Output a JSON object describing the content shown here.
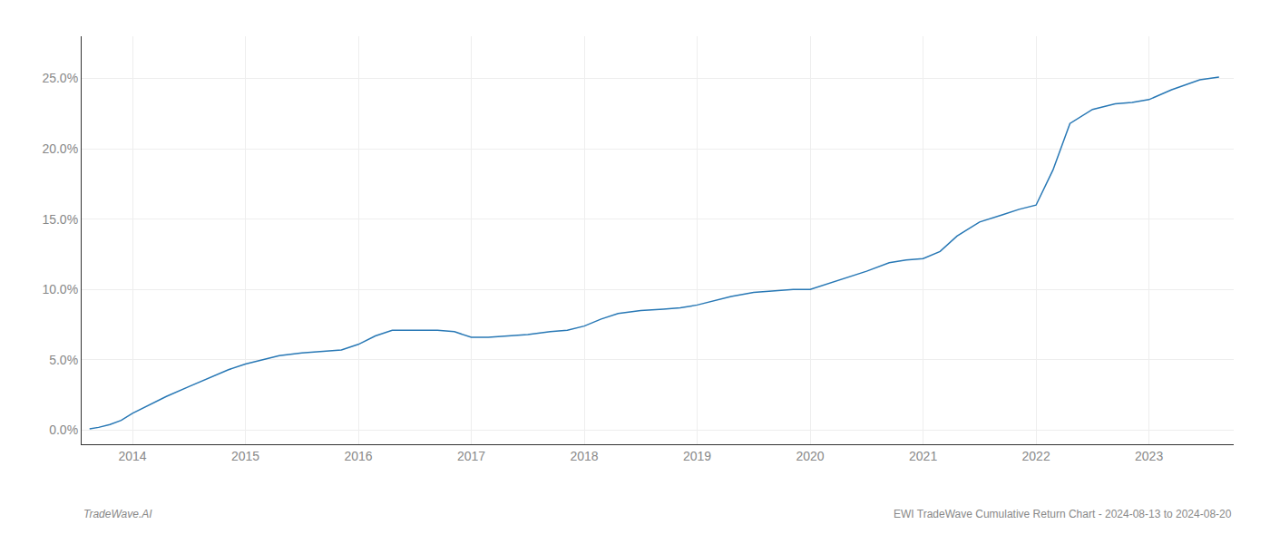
{
  "chart_data": {
    "type": "line",
    "color": "#2878b5",
    "grid": true,
    "x": [
      2013.62,
      2013.7,
      2013.8,
      2013.9,
      2014.0,
      2014.15,
      2014.3,
      2014.5,
      2014.7,
      2014.85,
      2015.0,
      2015.15,
      2015.3,
      2015.5,
      2015.7,
      2015.85,
      2016.0,
      2016.15,
      2016.3,
      2016.5,
      2016.7,
      2016.85,
      2017.0,
      2017.15,
      2017.3,
      2017.5,
      2017.7,
      2017.85,
      2018.0,
      2018.15,
      2018.3,
      2018.5,
      2018.7,
      2018.85,
      2019.0,
      2019.15,
      2019.3,
      2019.5,
      2019.7,
      2019.85,
      2020.0,
      2020.15,
      2020.3,
      2020.5,
      2020.7,
      2020.85,
      2021.0,
      2021.15,
      2021.3,
      2021.5,
      2021.7,
      2021.85,
      2022.0,
      2022.15,
      2022.3,
      2022.5,
      2022.7,
      2022.85,
      2023.0,
      2023.2,
      2023.45,
      2023.62
    ],
    "values": [
      0.001,
      0.002,
      0.004,
      0.007,
      0.012,
      0.018,
      0.024,
      0.031,
      0.038,
      0.043,
      0.047,
      0.05,
      0.053,
      0.055,
      0.056,
      0.057,
      0.061,
      0.067,
      0.071,
      0.071,
      0.071,
      0.07,
      0.066,
      0.066,
      0.067,
      0.068,
      0.07,
      0.071,
      0.074,
      0.079,
      0.083,
      0.085,
      0.086,
      0.087,
      0.089,
      0.092,
      0.095,
      0.098,
      0.099,
      0.1,
      0.1,
      0.104,
      0.108,
      0.113,
      0.119,
      0.121,
      0.122,
      0.127,
      0.138,
      0.148,
      0.153,
      0.157,
      0.16,
      0.185,
      0.218,
      0.228,
      0.232,
      0.233,
      0.235,
      0.242,
      0.249,
      0.251
    ],
    "xlim": [
      2013.55,
      2023.75
    ],
    "xticks": [
      2014,
      2015,
      2016,
      2017,
      2018,
      2019,
      2020,
      2021,
      2022,
      2023
    ],
    "ylim": [
      -0.01,
      0.28
    ],
    "yticks": [
      {
        "value": 0.0,
        "label": "0.0%"
      },
      {
        "value": 0.05,
        "label": "5.0%"
      },
      {
        "value": 0.1,
        "label": "10.0%"
      },
      {
        "value": 0.15,
        "label": "15.0%"
      },
      {
        "value": 0.2,
        "label": "20.0%"
      },
      {
        "value": 0.25,
        "label": "25.0%"
      }
    ],
    "annotations": [
      {
        "text": "TradeWave.AI"
      },
      {
        "text": "EWI TradeWave Cumulative Return Chart - 2024-08-13 to 2024-08-20"
      }
    ]
  }
}
